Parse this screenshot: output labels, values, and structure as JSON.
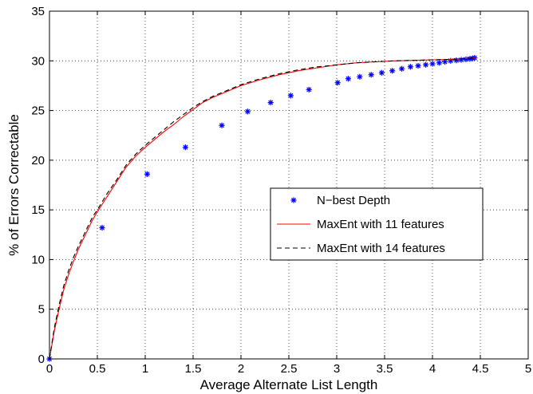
{
  "chart_data": {
    "type": "line",
    "title": "",
    "xlabel": "Average Alternate List Length",
    "ylabel": "% of Errors Correctable",
    "xlim": [
      0,
      5
    ],
    "ylim": [
      0,
      35
    ],
    "xticks": [
      0,
      0.5,
      1,
      1.5,
      2,
      2.5,
      3,
      3.5,
      4,
      4.5,
      5
    ],
    "xtick_labels": [
      "0",
      "0.5",
      "1",
      "1.5",
      "2",
      "2.5",
      "3",
      "3.5",
      "4",
      "4.5",
      "5"
    ],
    "yticks": [
      0,
      5,
      10,
      15,
      20,
      25,
      30,
      35
    ],
    "ytick_labels": [
      "0",
      "5",
      "10",
      "15",
      "20",
      "25",
      "30",
      "35"
    ],
    "grid": true,
    "legend_position": "center-right",
    "series": [
      {
        "name": "N−best Depth",
        "style": "markers",
        "marker": "*",
        "color": "#0000ff",
        "x": [
          0,
          0.55,
          1.02,
          1.42,
          1.8,
          2.07,
          2.31,
          2.52,
          2.71,
          3.01,
          3.12,
          3.24,
          3.36,
          3.47,
          3.58,
          3.68,
          3.77,
          3.85,
          3.93,
          4.0,
          4.07,
          4.13,
          4.19,
          4.25,
          4.3,
          4.35,
          4.39,
          4.42,
          4.44
        ],
        "y": [
          0,
          13.2,
          18.6,
          21.3,
          23.5,
          24.9,
          25.8,
          26.5,
          27.1,
          27.8,
          28.2,
          28.4,
          28.6,
          28.8,
          29.0,
          29.2,
          29.4,
          29.5,
          29.6,
          29.7,
          29.8,
          29.9,
          30.0,
          30.05,
          30.1,
          30.15,
          30.2,
          30.25,
          30.3
        ]
      },
      {
        "name": "MaxEnt with 11 features",
        "style": "solid",
        "color": "#ff0000",
        "x": [
          0,
          0.05,
          0.1,
          0.15,
          0.2,
          0.25,
          0.3,
          0.35,
          0.4,
          0.45,
          0.5,
          0.6,
          0.7,
          0.8,
          0.9,
          1.0,
          1.1,
          1.2,
          1.3,
          1.4,
          1.5,
          1.6,
          1.7,
          1.8,
          1.9,
          2.0,
          2.2,
          2.4,
          2.6,
          2.8,
          3.0,
          3.2,
          3.4,
          3.6,
          3.8,
          4.0,
          4.2,
          4.45
        ],
        "y": [
          0,
          2.8,
          5.0,
          7.0,
          8.5,
          9.8,
          11.0,
          12.0,
          13.0,
          14.0,
          14.8,
          16.3,
          17.8,
          19.3,
          20.4,
          21.3,
          22.1,
          22.9,
          23.6,
          24.4,
          25.1,
          25.8,
          26.3,
          26.7,
          27.1,
          27.5,
          28.1,
          28.6,
          29.0,
          29.3,
          29.6,
          29.8,
          29.9,
          30.0,
          30.05,
          30.1,
          30.15,
          30.3
        ]
      },
      {
        "name": "MaxEnt with 14 features",
        "style": "dashed",
        "color": "#000000",
        "x": [
          0,
          0.05,
          0.1,
          0.15,
          0.2,
          0.25,
          0.3,
          0.35,
          0.4,
          0.45,
          0.5,
          0.6,
          0.7,
          0.8,
          0.9,
          1.0,
          1.1,
          1.2,
          1.3,
          1.4,
          1.5,
          1.6,
          1.7,
          1.8,
          1.9,
          2.0,
          2.2,
          2.4,
          2.6,
          2.8,
          3.0,
          3.2,
          3.4,
          3.6,
          3.8,
          4.0,
          4.2,
          4.45
        ],
        "y": [
          0,
          3.1,
          5.4,
          7.4,
          8.9,
          10.2,
          11.3,
          12.3,
          13.3,
          14.3,
          15.0,
          16.6,
          18.0,
          19.5,
          20.6,
          21.5,
          22.3,
          23.1,
          23.9,
          24.6,
          25.3,
          25.9,
          26.4,
          26.8,
          27.2,
          27.6,
          28.2,
          28.7,
          29.1,
          29.4,
          29.6,
          29.8,
          29.9,
          30.0,
          30.05,
          30.1,
          30.15,
          30.3
        ]
      }
    ]
  }
}
